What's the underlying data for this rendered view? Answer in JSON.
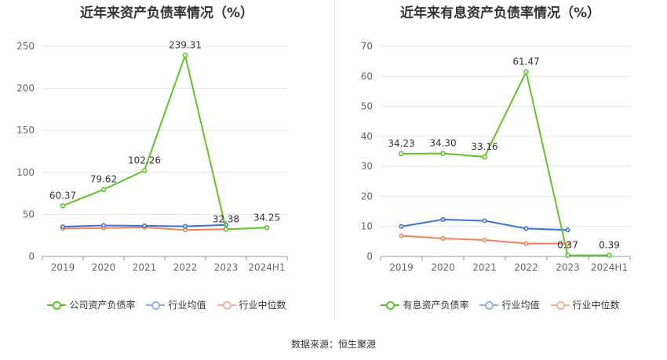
{
  "chart_data": [
    {
      "type": "line",
      "title": "近年来资产负债率情况（%）",
      "categories": [
        "2019",
        "2020",
        "2021",
        "2022",
        "2023",
        "2024H1"
      ],
      "ylim": [
        0,
        250
      ],
      "yticks": [
        0,
        50,
        100,
        150,
        200,
        250
      ],
      "grid": true,
      "legend_position": "bottom",
      "series": [
        {
          "name": "公司资产负债率",
          "color": "#5ec429",
          "values": [
            60.37,
            79.62,
            102.26,
            239.31,
            32.38,
            34.25
          ],
          "labels": [
            "60.37",
            "79.62",
            "102.26",
            "239.31",
            "32.38",
            "34.25"
          ]
        },
        {
          "name": "行业均值",
          "color": "#3b72d6",
          "values": [
            35.5,
            36.8,
            36.5,
            35.8,
            37.6,
            null
          ]
        },
        {
          "name": "行业中位数",
          "color": "#ee8459",
          "values": [
            33.2,
            33.8,
            34.6,
            31.5,
            32.4,
            null
          ]
        }
      ]
    },
    {
      "type": "line",
      "title": "近年来有息资产负债率情况（%）",
      "categories": [
        "2019",
        "2020",
        "2021",
        "2022",
        "2023",
        "2024H1"
      ],
      "ylim": [
        0,
        70
      ],
      "yticks": [
        0,
        10,
        20,
        30,
        40,
        50,
        60,
        70
      ],
      "grid": true,
      "legend_position": "bottom",
      "series": [
        {
          "name": "有息资产负债率",
          "color": "#5ec429",
          "values": [
            34.23,
            34.3,
            33.16,
            61.47,
            0.37,
            0.39
          ],
          "labels": [
            "34.23",
            "34.30",
            "33.16",
            "61.47",
            "0.37",
            "0.39"
          ]
        },
        {
          "name": "行业均值",
          "color": "#3b72d6",
          "values": [
            10.0,
            12.3,
            11.9,
            9.3,
            8.8,
            null
          ]
        },
        {
          "name": "行业中位数",
          "color": "#ee8459",
          "values": [
            6.9,
            6.0,
            5.5,
            4.3,
            4.3,
            null
          ]
        }
      ]
    }
  ],
  "legend_left": [
    {
      "label": "公司资产负债率",
      "color": "#5ec429"
    },
    {
      "label": "行业均值",
      "color": "#8fb1ec"
    },
    {
      "label": "行业中位数",
      "color": "#f3b39a"
    }
  ],
  "legend_right": [
    {
      "label": "有息资产负债率",
      "color": "#5ec429"
    },
    {
      "label": "行业均值",
      "color": "#8fb1ec"
    },
    {
      "label": "行业中位数",
      "color": "#f3b39a"
    }
  ],
  "source_text": "数据来源：恒生聚源"
}
